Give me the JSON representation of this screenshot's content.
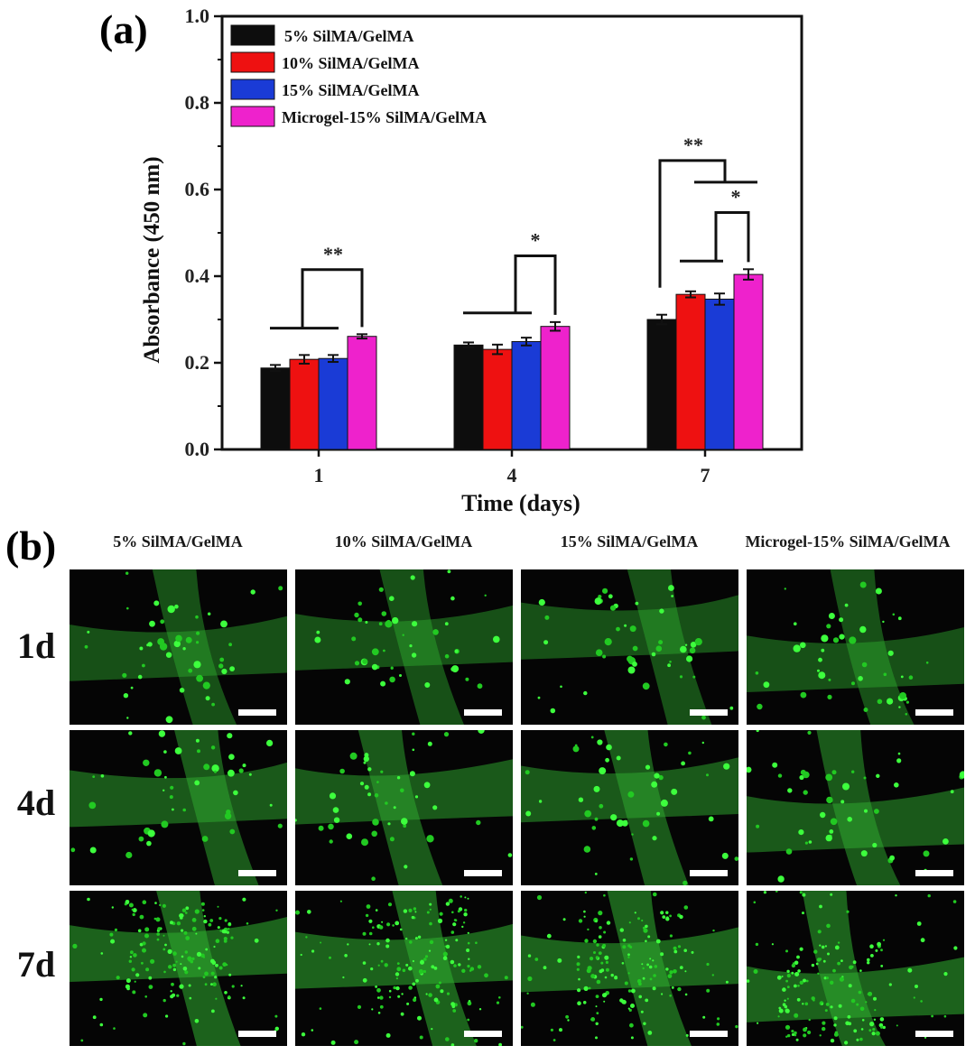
{
  "chart_data": {
    "type": "bar",
    "panel_label": "(a)",
    "xlabel": "Time (days)",
    "ylabel": "Absorbance (450 nm)",
    "categories": [
      "1",
      "4",
      "7"
    ],
    "ylim": [
      0.0,
      1.0
    ],
    "yticks": [
      "0.0",
      "0.2",
      "0.4",
      "0.6",
      "0.8",
      "1.0"
    ],
    "legend_position": "top-left",
    "series": [
      {
        "name": "5% SilMA/GelMA",
        "color": "#0d0d0d",
        "values": [
          0.188,
          0.241,
          0.3
        ],
        "errors": [
          0.007,
          0.006,
          0.011
        ]
      },
      {
        "name": "10% SilMA/GelMA",
        "color": "#ee1111",
        "values": [
          0.208,
          0.231,
          0.358
        ],
        "errors": [
          0.01,
          0.011,
          0.007
        ]
      },
      {
        "name": "15% SilMA/GelMA",
        "color": "#1a3bd6",
        "values": [
          0.21,
          0.249,
          0.347
        ],
        "errors": [
          0.008,
          0.009,
          0.013
        ]
      },
      {
        "name": "Microgel-15% SilMA/GelMA",
        "color": "#ee22cc",
        "values": [
          0.261,
          0.284,
          0.404
        ],
        "errors": [
          0.005,
          0.01,
          0.012
        ]
      }
    ],
    "significance": [
      {
        "category": "1",
        "label": "**"
      },
      {
        "category": "4",
        "label": "*"
      },
      {
        "category": "7",
        "label": "**"
      },
      {
        "category": "7",
        "label": "*"
      }
    ]
  },
  "panel_b": {
    "label": "(b)",
    "columns": [
      "5% SilMA/GelMA",
      "10% SilMA/GelMA",
      "15% SilMA/GelMA",
      "Microgel-15% SilMA/GelMA"
    ],
    "rows": [
      "1d",
      "4d",
      "7d"
    ]
  }
}
